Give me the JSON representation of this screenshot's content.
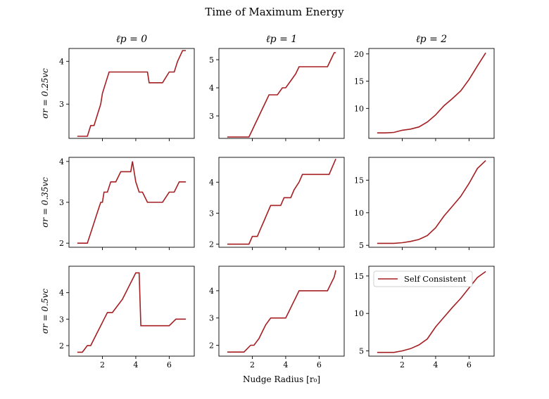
{
  "figure": {
    "title": "Time of Maximum Energy",
    "xlabel": "Nudge Radius [r₀]",
    "line_color": "#a51e22",
    "axis_color": "#000000",
    "legend": {
      "label": "Self Consistent",
      "panel": "2-2",
      "placement": "upper-left"
    }
  },
  "chart_data": [
    {
      "id": "0-0",
      "type": "line",
      "col_title": "ℓp = 0",
      "ylabel": "σr = 0.25vc",
      "xlim": [
        0,
        7.5
      ],
      "ylim": [
        2.2,
        4.3
      ],
      "xticks": [
        2,
        4,
        6
      ],
      "show_xticklabels": false,
      "yticks": [
        3,
        4
      ],
      "ytick_labels": [
        "3",
        "4"
      ],
      "series": [
        {
          "x": [
            0.5,
            0.8,
            1.1,
            1.3,
            1.5,
            1.7,
            1.9,
            2.0,
            2.2,
            2.4,
            2.6,
            4.7,
            4.8,
            5.0,
            5.6,
            6.0,
            6.3,
            6.5,
            6.8,
            7.0
          ],
          "y": [
            2.25,
            2.25,
            2.25,
            2.5,
            2.5,
            2.75,
            3.0,
            3.25,
            3.5,
            3.75,
            3.75,
            3.75,
            3.5,
            3.5,
            3.5,
            3.75,
            3.75,
            4.0,
            4.25,
            4.25
          ]
        }
      ]
    },
    {
      "id": "0-1",
      "type": "line",
      "col_title": "ℓp = 1",
      "ylabel": "",
      "xlim": [
        0,
        7.5
      ],
      "ylim": [
        2.2,
        5.4
      ],
      "xticks": [
        2,
        4,
        6
      ],
      "show_xticklabels": false,
      "yticks": [
        3,
        4,
        5
      ],
      "ytick_labels": [
        "3",
        "4",
        "5"
      ],
      "series": [
        {
          "x": [
            0.5,
            1.0,
            1.5,
            1.8,
            2.0,
            2.2,
            2.4,
            2.6,
            2.8,
            3.0,
            3.2,
            3.5,
            3.8,
            4.0,
            4.3,
            4.6,
            4.8,
            5.0,
            5.5,
            6.0,
            6.5,
            6.7,
            6.9,
            7.0
          ],
          "y": [
            2.25,
            2.25,
            2.25,
            2.25,
            2.5,
            2.75,
            3.0,
            3.25,
            3.5,
            3.75,
            3.75,
            3.75,
            4.0,
            4.0,
            4.25,
            4.5,
            4.75,
            4.75,
            4.75,
            4.75,
            4.75,
            5.0,
            5.25,
            5.25
          ]
        }
      ]
    },
    {
      "id": "0-2",
      "type": "line",
      "col_title": "ℓp = 2",
      "ylabel": "",
      "xlim": [
        0,
        7.5
      ],
      "ylim": [
        4.5,
        21
      ],
      "xticks": [
        2,
        4,
        6
      ],
      "show_xticklabels": false,
      "yticks": [
        10,
        15,
        20
      ],
      "ytick_labels": [
        "10",
        "15",
        "20"
      ],
      "series": [
        {
          "x": [
            0.5,
            1.0,
            1.5,
            2.0,
            2.5,
            3.0,
            3.5,
            4.0,
            4.5,
            5.0,
            5.5,
            6.0,
            6.5,
            7.0
          ],
          "y": [
            5.5,
            5.5,
            5.6,
            6.0,
            6.2,
            6.6,
            7.5,
            8.8,
            10.5,
            11.8,
            13.2,
            15.3,
            17.8,
            20.2
          ]
        }
      ]
    },
    {
      "id": "1-0",
      "type": "line",
      "col_title": "",
      "ylabel": "σr = 0.35vc",
      "xlim": [
        0,
        7.5
      ],
      "ylim": [
        1.9,
        4.1
      ],
      "xticks": [
        2,
        4,
        6
      ],
      "show_xticklabels": false,
      "yticks": [
        2,
        3,
        4
      ],
      "ytick_labels": [
        "2",
        "3",
        "4"
      ],
      "series": [
        {
          "x": [
            0.5,
            0.8,
            1.1,
            1.3,
            1.5,
            1.7,
            1.9,
            2.0,
            2.1,
            2.3,
            2.5,
            2.8,
            3.1,
            3.4,
            3.7,
            3.8,
            4.0,
            4.2,
            4.4,
            4.7,
            5.0,
            5.6,
            6.0,
            6.3,
            6.6,
            7.0
          ],
          "y": [
            2.0,
            2.0,
            2.0,
            2.25,
            2.5,
            2.75,
            3.0,
            3.0,
            3.25,
            3.25,
            3.5,
            3.5,
            3.75,
            3.75,
            3.75,
            4.0,
            3.5,
            3.25,
            3.25,
            3.0,
            3.0,
            3.0,
            3.25,
            3.25,
            3.5,
            3.5
          ]
        }
      ]
    },
    {
      "id": "1-1",
      "type": "line",
      "col_title": "",
      "ylabel": "",
      "xlim": [
        0,
        7.5
      ],
      "ylim": [
        1.9,
        4.8
      ],
      "xticks": [
        2,
        4,
        6
      ],
      "show_xticklabels": false,
      "yticks": [
        2,
        3,
        4
      ],
      "ytick_labels": [
        "2",
        "3",
        "4"
      ],
      "series": [
        {
          "x": [
            0.5,
            1.0,
            1.5,
            1.8,
            2.0,
            2.3,
            2.5,
            2.7,
            2.9,
            3.1,
            3.3,
            3.7,
            3.9,
            4.3,
            4.5,
            4.8,
            5.0,
            5.5,
            6.0,
            6.3,
            6.6,
            6.8,
            7.0
          ],
          "y": [
            2.0,
            2.0,
            2.0,
            2.0,
            2.25,
            2.25,
            2.5,
            2.75,
            3.0,
            3.25,
            3.25,
            3.25,
            3.5,
            3.5,
            3.75,
            4.0,
            4.25,
            4.25,
            4.25,
            4.25,
            4.25,
            4.5,
            4.75
          ]
        }
      ]
    },
    {
      "id": "1-2",
      "type": "line",
      "col_title": "",
      "ylabel": "",
      "xlim": [
        0,
        7.5
      ],
      "ylim": [
        4.7,
        18.5
      ],
      "xticks": [
        2,
        4,
        6
      ],
      "show_xticklabels": false,
      "yticks": [
        5,
        10,
        15
      ],
      "ytick_labels": [
        "5",
        "10",
        "15"
      ],
      "series": [
        {
          "x": [
            0.5,
            1.0,
            1.5,
            2.0,
            2.5,
            3.0,
            3.5,
            4.0,
            4.5,
            5.0,
            5.5,
            6.0,
            6.5,
            7.0
          ],
          "y": [
            5.3,
            5.3,
            5.3,
            5.4,
            5.6,
            5.9,
            6.5,
            7.7,
            9.5,
            11.0,
            12.5,
            14.5,
            16.8,
            18.0
          ]
        }
      ]
    },
    {
      "id": "2-0",
      "type": "line",
      "col_title": "",
      "ylabel": "σr = 0.5vc",
      "xlim": [
        0,
        7.5
      ],
      "ylim": [
        1.6,
        5.0
      ],
      "xticks": [
        2,
        4,
        6
      ],
      "show_xticklabels": true,
      "xtick_labels": [
        "2",
        "4",
        "6"
      ],
      "yticks": [
        2,
        3,
        4
      ],
      "ytick_labels": [
        "2",
        "3",
        "4"
      ],
      "series": [
        {
          "x": [
            0.5,
            0.8,
            1.1,
            1.3,
            1.5,
            1.7,
            1.9,
            2.1,
            2.3,
            2.6,
            2.9,
            3.2,
            3.4,
            3.6,
            3.8,
            4.0,
            4.2,
            4.3,
            5.0,
            5.5,
            6.0,
            6.4,
            7.0
          ],
          "y": [
            1.75,
            1.75,
            2.0,
            2.0,
            2.25,
            2.5,
            2.75,
            3.0,
            3.25,
            3.25,
            3.5,
            3.75,
            4.0,
            4.25,
            4.5,
            4.75,
            4.75,
            2.75,
            2.75,
            2.75,
            2.75,
            3.0,
            3.0
          ]
        }
      ]
    },
    {
      "id": "2-1",
      "type": "line",
      "col_title": "",
      "ylabel": "",
      "xlim": [
        0,
        7.5
      ],
      "ylim": [
        1.6,
        4.9
      ],
      "xticks": [
        2,
        4,
        6
      ],
      "show_xticklabels": true,
      "xtick_labels": [
        "2",
        "4",
        "6"
      ],
      "yticks": [
        2,
        3,
        4
      ],
      "ytick_labels": [
        "2",
        "3",
        "4"
      ],
      "series": [
        {
          "x": [
            0.5,
            1.0,
            1.5,
            1.9,
            2.1,
            2.4,
            2.6,
            2.8,
            3.1,
            3.6,
            4.0,
            4.2,
            4.4,
            4.6,
            4.8,
            5.0,
            5.5,
            6.0,
            6.5,
            6.7,
            6.9,
            7.0
          ],
          "y": [
            1.75,
            1.75,
            1.75,
            2.0,
            2.0,
            2.25,
            2.5,
            2.75,
            3.0,
            3.0,
            3.0,
            3.25,
            3.5,
            3.75,
            4.0,
            4.0,
            4.0,
            4.0,
            4.0,
            4.25,
            4.5,
            4.75
          ]
        }
      ]
    },
    {
      "id": "2-2",
      "type": "line",
      "col_title": "",
      "ylabel": "",
      "xlim": [
        0,
        7.5
      ],
      "ylim": [
        4.3,
        16.3
      ],
      "xticks": [
        2,
        4,
        6
      ],
      "show_xticklabels": true,
      "xtick_labels": [
        "2",
        "4",
        "6"
      ],
      "yticks": [
        5,
        10,
        15
      ],
      "ytick_labels": [
        "5",
        "10",
        "15"
      ],
      "series": [
        {
          "name": "Self Consistent",
          "x": [
            0.5,
            1.0,
            1.5,
            2.0,
            2.5,
            3.0,
            3.5,
            4.0,
            4.5,
            5.0,
            5.5,
            6.0,
            6.5,
            7.0
          ],
          "y": [
            4.8,
            4.8,
            4.8,
            5.0,
            5.3,
            5.8,
            6.6,
            8.2,
            9.5,
            10.8,
            12.0,
            13.4,
            14.8,
            15.6
          ]
        }
      ]
    }
  ]
}
